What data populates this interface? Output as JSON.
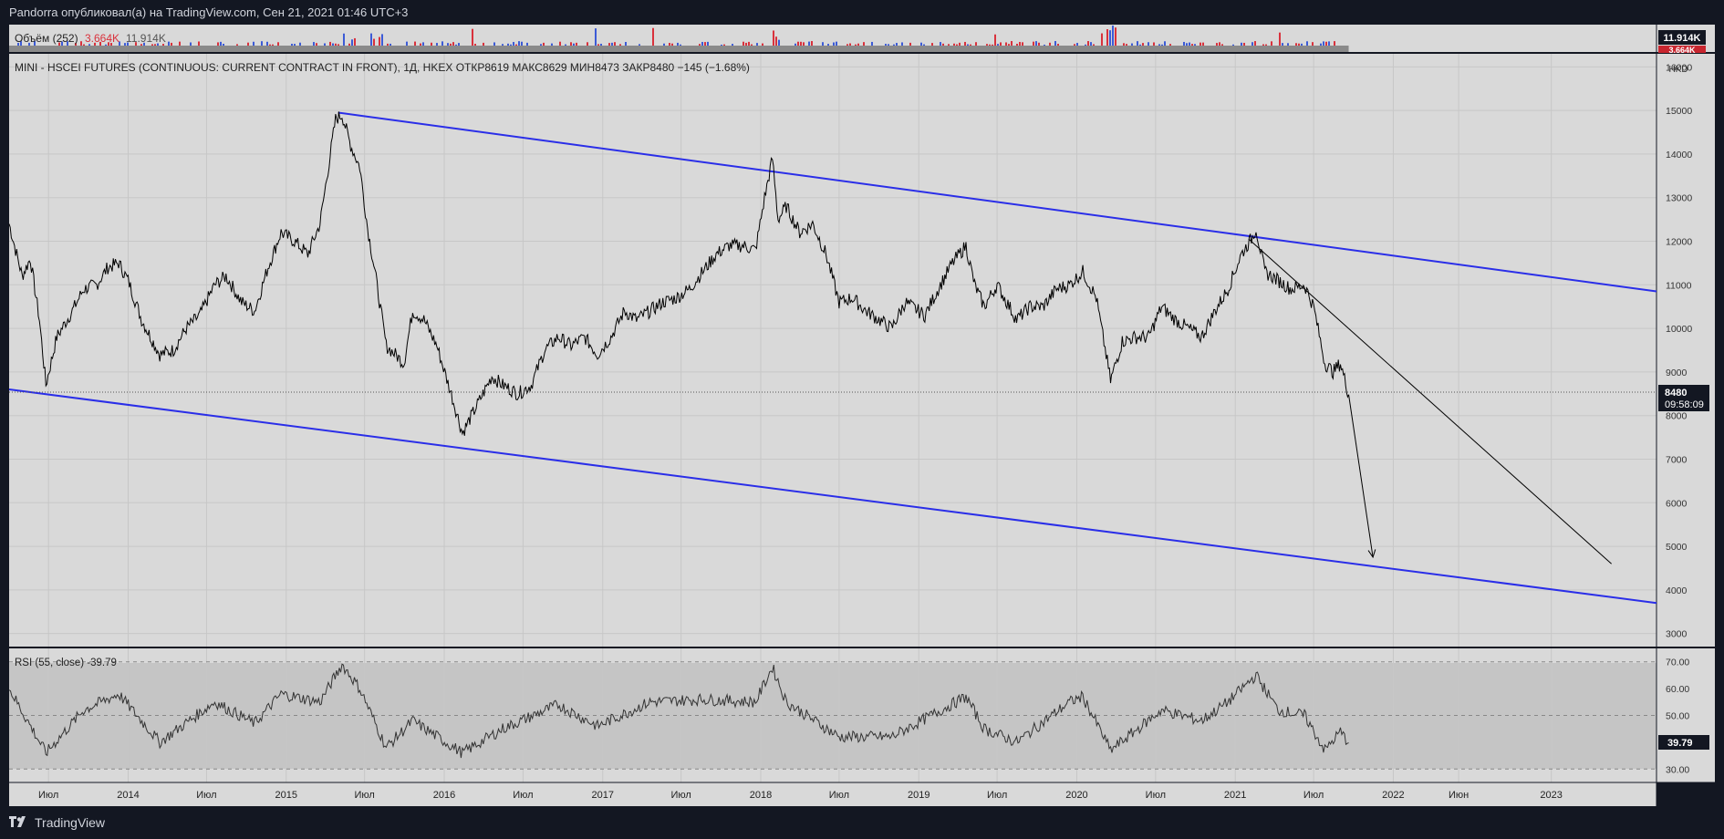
{
  "header": {
    "publish_text": "Pandorra опубликовал(а) на TradingView.com, Сен 21, 2021 01:46 UTC+3"
  },
  "volume": {
    "label": "Объём (252)",
    "value1": "3.664K",
    "value2": "11.914K",
    "scale_top": "11.914K",
    "scale_badge": "3.664K"
  },
  "legend": {
    "text": "MINI - HSCEI FUTURES (CONTINUOUS: CURRENT CONTRACT IN FRONT), 1Д, HKEX  ОТКР8619  МАКС8629  МИН8473  ЗАКР8480  −145 (−1.68%)"
  },
  "price_axis": {
    "currency": "HKD",
    "ticks": [
      "16000",
      "15000",
      "14000",
      "13000",
      "12000",
      "11000",
      "10000",
      "9000",
      "8000",
      "7000",
      "6000",
      "5000",
      "4000",
      "3000"
    ]
  },
  "last_price": {
    "value": "8480",
    "countdown": "09:58:09"
  },
  "rsi": {
    "label": "RSI (55, close) -39.79",
    "ticks": [
      "70.00",
      "60.00",
      "50.00",
      "40.00",
      "30.00"
    ],
    "last": "39.79"
  },
  "time_axis": {
    "labels": [
      "Июл",
      "2014",
      "Июл",
      "2015",
      "Июл",
      "2016",
      "Июл",
      "2017",
      "Июл",
      "2018",
      "Июл",
      "2019",
      "Июл",
      "2020",
      "Июл",
      "2021",
      "Июл",
      "2022",
      "Июн",
      "2023"
    ]
  },
  "footer": {
    "brand": "TradingView"
  },
  "colors": {
    "background": "#d9d9d9",
    "trendline": "#2a2ee8",
    "price": "#000000",
    "volume_up": "#3c5bd6",
    "volume_down": "#d9313c",
    "frame": "#131722"
  },
  "chart_data": {
    "type": "line",
    "title": "MINI - HSCEI FUTURES (CONTINUOUS: CURRENT CONTRACT IN FRONT)",
    "x_range": [
      "2013-04",
      "2023-09"
    ],
    "ylim": [
      2700,
      16300
    ],
    "series": [
      {
        "name": "Price",
        "points": [
          [
            "2013-04-01",
            12400
          ],
          [
            "2013-05-01",
            11200
          ],
          [
            "2013-05-20",
            11600
          ],
          [
            "2013-06-10",
            10200
          ],
          [
            "2013-06-25",
            8700
          ],
          [
            "2013-07-20",
            9800
          ],
          [
            "2013-08-25",
            10400
          ],
          [
            "2013-09-20",
            10900
          ],
          [
            "2013-10-20",
            11000
          ],
          [
            "2013-11-15",
            11400
          ],
          [
            "2013-12-10",
            11500
          ],
          [
            "2014-01-01",
            11100
          ],
          [
            "2014-02-01",
            10200
          ],
          [
            "2014-03-15",
            9400
          ],
          [
            "2014-04-15",
            9500
          ],
          [
            "2014-05-15",
            10000
          ],
          [
            "2014-06-15",
            10300
          ],
          [
            "2014-07-20",
            11000
          ],
          [
            "2014-08-15",
            11200
          ],
          [
            "2014-09-20",
            10600
          ],
          [
            "2014-10-20",
            10400
          ],
          [
            "2014-11-20",
            11400
          ],
          [
            "2014-12-20",
            12200
          ],
          [
            "2015-01-20",
            12000
          ],
          [
            "2015-02-20",
            11700
          ],
          [
            "2015-03-20",
            12400
          ],
          [
            "2015-04-10",
            13800
          ],
          [
            "2015-04-25",
            14800
          ],
          [
            "2015-05-10",
            14900
          ],
          [
            "2015-05-30",
            14200
          ],
          [
            "2015-06-20",
            13700
          ],
          [
            "2015-07-08",
            12300
          ],
          [
            "2015-07-25",
            11300
          ],
          [
            "2015-08-20",
            9600
          ],
          [
            "2015-09-10",
            9400
          ],
          [
            "2015-09-30",
            9200
          ],
          [
            "2015-10-20",
            10400
          ],
          [
            "2015-11-15",
            10200
          ],
          [
            "2015-12-15",
            9600
          ],
          [
            "2016-01-20",
            8400
          ],
          [
            "2016-02-12",
            7600
          ],
          [
            "2016-03-15",
            8200
          ],
          [
            "2016-04-20",
            8900
          ],
          [
            "2016-05-15",
            8700
          ],
          [
            "2016-06-20",
            8500
          ],
          [
            "2016-07-20",
            8700
          ],
          [
            "2016-08-20",
            9500
          ],
          [
            "2016-09-20",
            9800
          ],
          [
            "2016-10-20",
            9600
          ],
          [
            "2016-11-20",
            9800
          ],
          [
            "2016-12-20",
            9400
          ],
          [
            "2017-01-20",
            9800
          ],
          [
            "2017-02-20",
            10400
          ],
          [
            "2017-03-20",
            10200
          ],
          [
            "2017-04-20",
            10400
          ],
          [
            "2017-05-20",
            10600
          ],
          [
            "2017-06-20",
            10700
          ],
          [
            "2017-07-20",
            10900
          ],
          [
            "2017-08-20",
            11300
          ],
          [
            "2017-09-20",
            11700
          ],
          [
            "2017-10-20",
            11900
          ],
          [
            "2017-11-20",
            11900
          ],
          [
            "2017-12-20",
            11800
          ],
          [
            "2018-01-10",
            13000
          ],
          [
            "2018-01-28",
            13900
          ],
          [
            "2018-02-10",
            12500
          ],
          [
            "2018-03-01",
            12800
          ],
          [
            "2018-04-01",
            12200
          ],
          [
            "2018-05-01",
            12400
          ],
          [
            "2018-06-01",
            11700
          ],
          [
            "2018-07-01",
            10600
          ],
          [
            "2018-08-01",
            10700
          ],
          [
            "2018-09-01",
            10400
          ],
          [
            "2018-10-01",
            10200
          ],
          [
            "2018-10-30",
            10000
          ],
          [
            "2018-12-01",
            10600
          ],
          [
            "2019-01-15",
            10300
          ],
          [
            "2019-02-20",
            11000
          ],
          [
            "2019-03-20",
            11500
          ],
          [
            "2019-04-20",
            11900
          ],
          [
            "2019-05-10",
            11000
          ],
          [
            "2019-06-01",
            10500
          ],
          [
            "2019-07-01",
            11000
          ],
          [
            "2019-08-15",
            10200
          ],
          [
            "2019-09-15",
            10500
          ],
          [
            "2019-10-15",
            10500
          ],
          [
            "2019-11-15",
            10900
          ],
          [
            "2019-12-15",
            11000
          ],
          [
            "2020-01-15",
            11300
          ],
          [
            "2020-02-15",
            10700
          ],
          [
            "2020-03-19",
            8800
          ],
          [
            "2020-04-15",
            9700
          ],
          [
            "2020-05-15",
            9800
          ],
          [
            "2020-06-15",
            9800
          ],
          [
            "2020-07-15",
            10500
          ],
          [
            "2020-08-15",
            10200
          ],
          [
            "2020-09-15",
            10000
          ],
          [
            "2020-10-15",
            9800
          ],
          [
            "2020-11-15",
            10400
          ],
          [
            "2020-12-15",
            10900
          ],
          [
            "2021-01-15",
            11700
          ],
          [
            "2021-02-10",
            12100
          ],
          [
            "2021-02-18",
            12300
          ],
          [
            "2021-03-10",
            11300
          ],
          [
            "2021-04-10",
            11100
          ],
          [
            "2021-05-10",
            10900
          ],
          [
            "2021-06-10",
            11000
          ],
          [
            "2021-07-01",
            10500
          ],
          [
            "2021-07-27",
            9200
          ],
          [
            "2021-08-15",
            9000
          ],
          [
            "2021-09-01",
            9200
          ],
          [
            "2021-09-20",
            8480
          ]
        ]
      },
      {
        "name": "RSI (55, close)",
        "points": [
          [
            "2013-04-01",
            60
          ],
          [
            "2013-06-25",
            36
          ],
          [
            "2013-09-20",
            52
          ],
          [
            "2013-12-10",
            58
          ],
          [
            "2014-03-15",
            40
          ],
          [
            "2014-07-20",
            55
          ],
          [
            "2014-10-20",
            47
          ],
          [
            "2014-12-20",
            58
          ],
          [
            "2015-03-20",
            55
          ],
          [
            "2015-05-10",
            69
          ],
          [
            "2015-06-20",
            60
          ],
          [
            "2015-08-20",
            38
          ],
          [
            "2015-10-20",
            48
          ],
          [
            "2016-02-12",
            36
          ],
          [
            "2016-05-15",
            45
          ],
          [
            "2016-09-20",
            54
          ],
          [
            "2016-12-20",
            46
          ],
          [
            "2017-04-20",
            55
          ],
          [
            "2017-08-20",
            56
          ],
          [
            "2017-12-20",
            55
          ],
          [
            "2018-01-28",
            68
          ],
          [
            "2018-03-01",
            55
          ],
          [
            "2018-07-01",
            42
          ],
          [
            "2018-10-30",
            42
          ],
          [
            "2019-04-20",
            57
          ],
          [
            "2019-06-01",
            45
          ],
          [
            "2019-08-15",
            40
          ],
          [
            "2019-12-15",
            55
          ],
          [
            "2020-01-15",
            57
          ],
          [
            "2020-03-19",
            37
          ],
          [
            "2020-07-15",
            52
          ],
          [
            "2020-10-15",
            48
          ],
          [
            "2020-12-15",
            55
          ],
          [
            "2021-02-18",
            65
          ],
          [
            "2021-04-10",
            52
          ],
          [
            "2021-06-10",
            50
          ],
          [
            "2021-07-27",
            37
          ],
          [
            "2021-09-01",
            44
          ],
          [
            "2021-09-20",
            39.79
          ]
        ]
      }
    ],
    "trendlines": [
      {
        "from": [
          "2015-05-01",
          14950
        ],
        "to": [
          "2023-09-01",
          10850
        ]
      },
      {
        "from": [
          "2013-04-01",
          8600
        ],
        "to": [
          "2023-09-01",
          3700
        ]
      },
      {
        "from": [
          "2021-02-01",
          12050
        ],
        "to": [
          "2023-05-20",
          4600
        ]
      }
    ],
    "arrow": {
      "from": [
        "2021-09-20",
        8480
      ],
      "to": [
        "2021-11-15",
        4750
      ]
    },
    "rsi_levels": [
      70,
      50,
      30
    ]
  }
}
